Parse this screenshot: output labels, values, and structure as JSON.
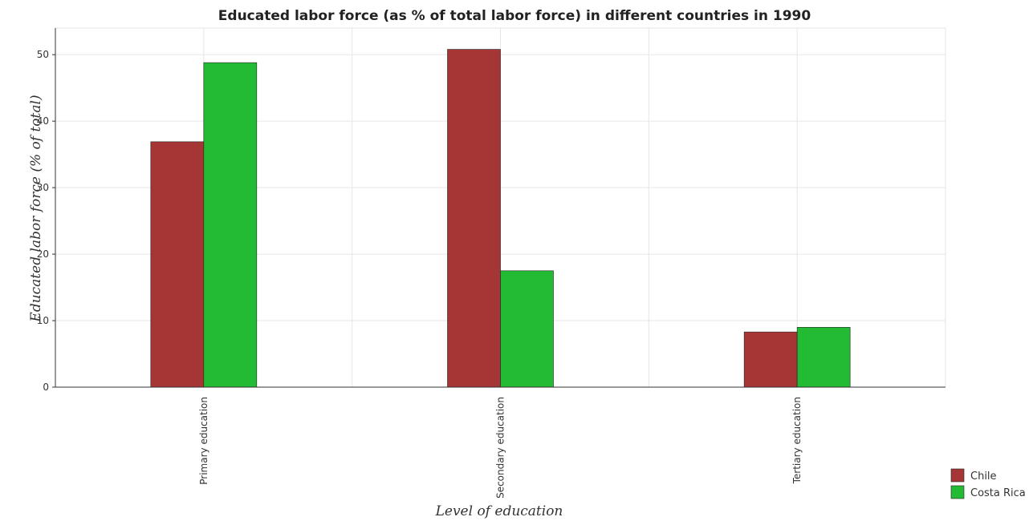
{
  "chart_data": {
    "type": "bar",
    "title": "Educated labor force (as % of total labor force) in different countries in 1990",
    "xlabel": "Level of education",
    "ylabel": "Educated labor force (% of total)",
    "categories": [
      "Primary education",
      "Secondary education",
      "Tertiary education"
    ],
    "series": [
      {
        "name": "Chile",
        "color": "#a63535",
        "values": [
          36.9,
          50.8,
          8.3
        ]
      },
      {
        "name": "Costa Rica",
        "color": "#22bb33",
        "values": [
          48.8,
          17.5,
          9.0
        ]
      }
    ],
    "ylim": [
      0,
      54
    ],
    "yticks": [
      0,
      10,
      20,
      30,
      40,
      50
    ],
    "grid": true,
    "legend_position": "bottom-right"
  }
}
